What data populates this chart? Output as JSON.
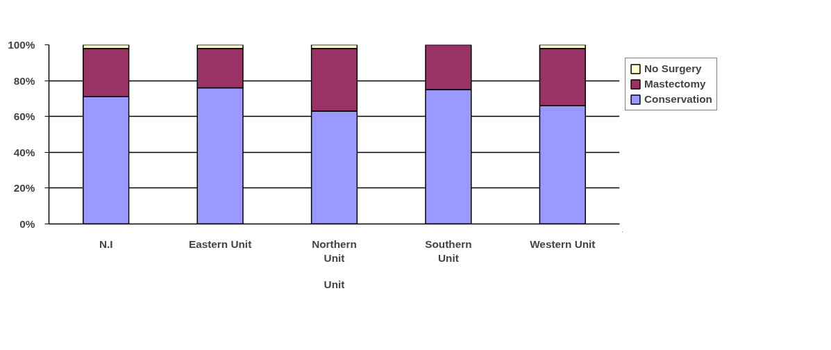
{
  "chart_data": {
    "type": "bar",
    "stacked": true,
    "xlabel": "Unit",
    "categories": [
      "N.I",
      "Eastern Unit",
      "Northern Unit",
      "Southern Unit",
      "Western Unit"
    ],
    "series": [
      {
        "name": "Conservation",
        "color": "#9999ff",
        "values": [
          71,
          76,
          63,
          75,
          66
        ]
      },
      {
        "name": "Mastectomy",
        "color": "#993366",
        "values": [
          27,
          22,
          35,
          25,
          32
        ]
      },
      {
        "name": "No Surgery",
        "color": "#ffffcc",
        "values": [
          2,
          2,
          2,
          0,
          2
        ]
      }
    ],
    "ylim": [
      0,
      100
    ],
    "yticks": [
      {
        "value": 0,
        "label": "0%"
      },
      {
        "value": 20,
        "label": "20%"
      },
      {
        "value": 40,
        "label": "40%"
      },
      {
        "value": 60,
        "label": "60%"
      },
      {
        "value": 80,
        "label": "80%"
      },
      {
        "value": 100,
        "label": "100%"
      }
    ],
    "grid": "y",
    "legend": "right"
  }
}
